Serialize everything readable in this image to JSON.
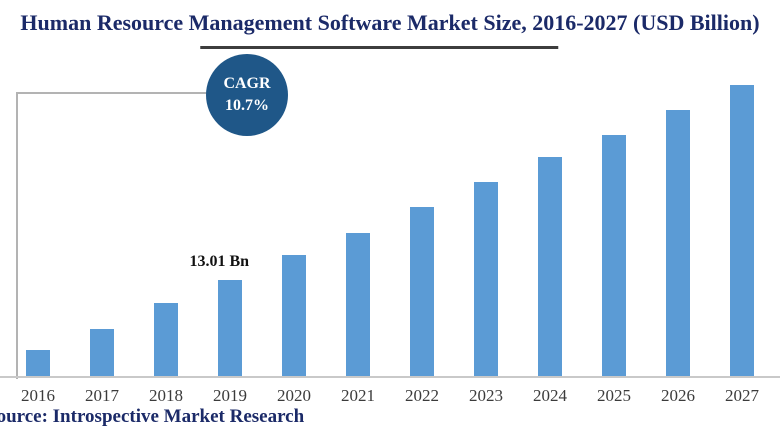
{
  "title": "Human Resource Management Software Market Size, 2016-2027 (USD Billion)",
  "source": "Source: Introspective Market Research",
  "cagr_badge": {
    "line1": "CAGR",
    "line2": "10.7%"
  },
  "colors": {
    "bar": "#5b9bd5",
    "badge": "#1f5788",
    "title_text": "#1b2a68",
    "axis_line": "#c9c9c9"
  },
  "chart_data": {
    "type": "bar",
    "title": "Human Resource Management Software Market Size, 2016-2027 (USD Billion)",
    "categories": [
      "2016",
      "2017",
      "2018",
      "2019",
      "2020",
      "2021",
      "2022",
      "2023",
      "2024",
      "2025",
      "2026",
      "2027"
    ],
    "values": [
      3.5,
      6.4,
      9.8,
      13.01,
      16.4,
      19.3,
      22.8,
      26.2,
      29.6,
      32.6,
      35.9,
      39.3
    ],
    "xlabel": "",
    "ylabel": "",
    "ylim": [
      0,
      40
    ],
    "grid": false,
    "legend": false,
    "annotations": [
      {
        "category": "2019",
        "text": "13.01 Bn"
      }
    ]
  }
}
